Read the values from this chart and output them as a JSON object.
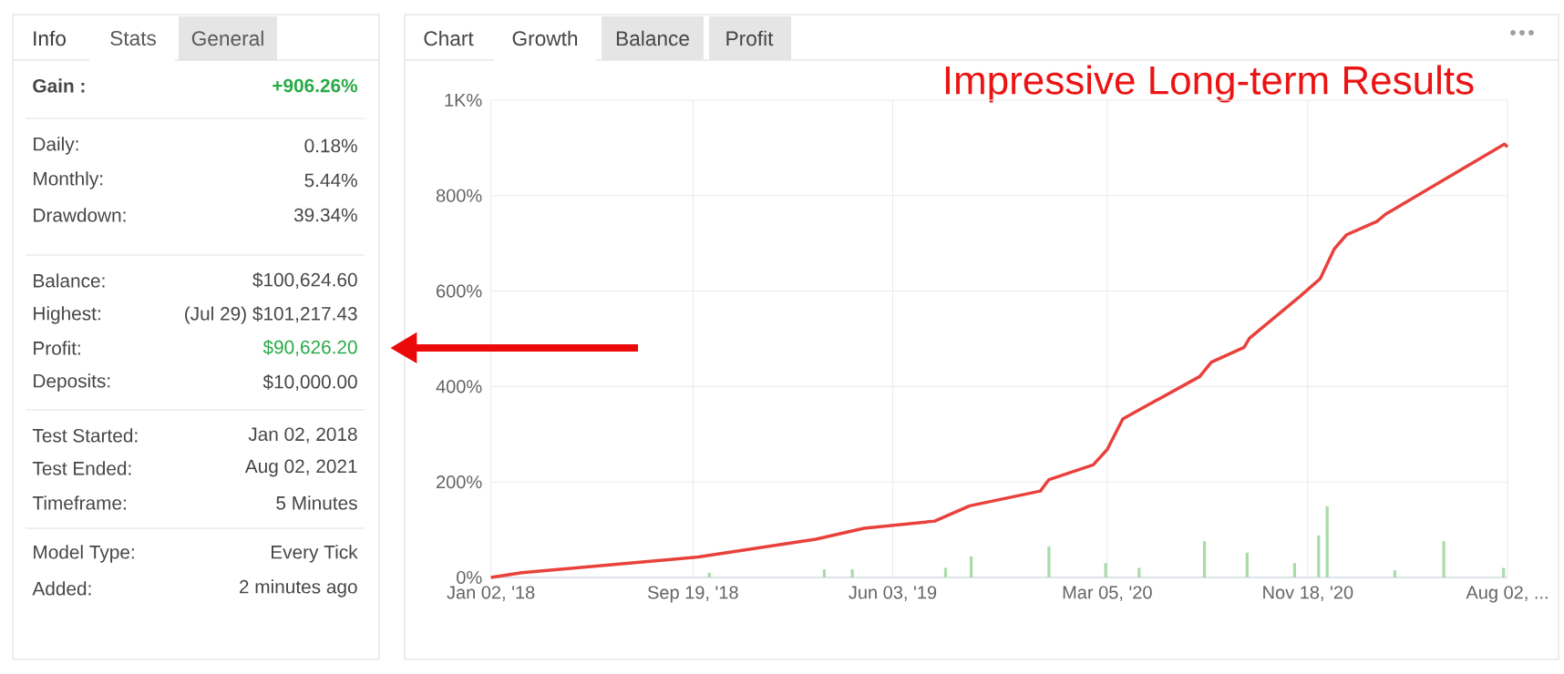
{
  "chart_data": [
    {
      "type": "other",
      "annotations": [
        "Info",
        "Stats",
        "General",
        "Gain :",
        "+906.26%",
        "Daily:",
        "0.18%",
        "Monthly:",
        "5.44%",
        "Drawdown:",
        "39.34%",
        "Balance:",
        "$100,624.60",
        "Highest:",
        "(Jul 29) $101,217.43",
        "Profit:",
        "$90,626.20",
        "Deposits:",
        "$10,000.00",
        "Test Started:",
        "Jan 02, 2018",
        "Test Ended:",
        "Aug 02, 2021",
        "Timeframe:",
        "5 Minutes",
        "Model Type:",
        "Every Tick",
        "Added:",
        "2 minutes ago"
      ]
    },
    {
      "type": "line",
      "title": "Impressive Long-term Results",
      "annotations": [
        "Chart",
        "Growth",
        "Balance",
        "Profit"
      ],
      "grid": true,
      "xlim": [
        "2018-01-02",
        "2021-08-02"
      ],
      "ylim": [
        0,
        1000
      ],
      "xticks": [
        {
          "value": "2018-01-02",
          "label": "Jan 02, '18"
        },
        {
          "value": "2018-09-19",
          "label": "Sep 19, '18"
        },
        {
          "value": "2019-06-03",
          "label": "Jun 03, '19"
        },
        {
          "value": "2020-03-05",
          "label": "Mar 05, '20"
        },
        {
          "value": "2020-11-18",
          "label": "Nov 18, '20"
        },
        {
          "value": "2021-08-02",
          "label": "Aug 02, ..."
        }
      ],
      "yticks": [
        {
          "value": 0,
          "label": "0%"
        },
        {
          "value": 200,
          "label": "200%"
        },
        {
          "value": 400,
          "label": "400%"
        },
        {
          "value": 600,
          "label": "600%"
        },
        {
          "value": 800,
          "label": "800%"
        },
        {
          "value": 1000,
          "label": "1K%"
        }
      ],
      "series": [
        {
          "type": "bar",
          "color": "#a8dba8",
          "x": [
            "2018-10-10",
            "2019-03-07",
            "2019-04-12",
            "2019-08-10",
            "2019-09-12",
            "2019-12-21",
            "2020-03-03",
            "2020-04-15",
            "2020-07-08",
            "2020-09-01",
            "2020-11-01",
            "2020-12-02",
            "2020-12-13",
            "2021-03-10",
            "2021-05-12",
            "2021-07-28"
          ],
          "values": [
            10,
            17,
            17,
            20,
            44,
            65,
            30,
            20,
            76,
            52,
            30,
            88,
            149,
            15,
            76,
            20
          ]
        },
        {
          "type": "line",
          "color": "#e8413c",
          "x": [
            "2018-01-02",
            "2018-02-11",
            "2018-09-26",
            "2019-02-24",
            "2019-04-27",
            "2019-07-27",
            "2019-09-10",
            "2019-12-10",
            "2019-12-21",
            "2020-02-16",
            "2020-03-05",
            "2020-03-25",
            "2020-04-25",
            "2020-07-02",
            "2020-07-17",
            "2020-08-28",
            "2020-09-04",
            "2020-11-08",
            "2020-12-04",
            "2020-12-22",
            "2021-01-07",
            "2021-02-15",
            "2021-02-26",
            "2021-05-10",
            "2021-07-29",
            "2021-08-02"
          ],
          "values": [
            0,
            10,
            43,
            80,
            103,
            118,
            150,
            181,
            205,
            236,
            268,
            332,
            360,
            421,
            451,
            482,
            501,
            589,
            626,
            688,
            718,
            746,
            761,
            831,
            908,
            902
          ]
        }
      ]
    }
  ]
}
